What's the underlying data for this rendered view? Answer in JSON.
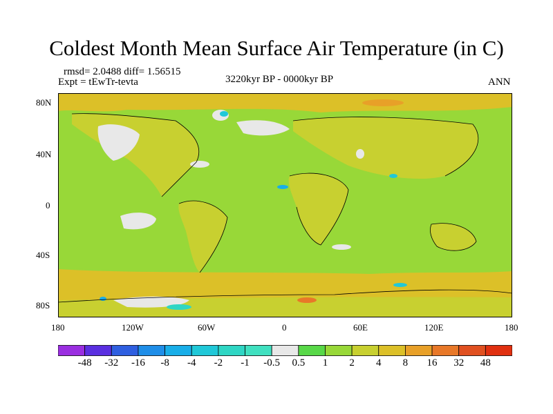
{
  "title": "Coldest Month Mean Surface Air Temperature (in C)",
  "left_line1": "rmsd= 2.0488 diff= 1.56515",
  "left_line2": "Expt = tEwTr-tevta",
  "center_line": "3220kyr BP - 0000kyr BP",
  "right_line": "ANN",
  "lat_ticks": [
    "80N",
    "40N",
    "0",
    "40S",
    "80S"
  ],
  "lon_ticks": [
    "180",
    "120W",
    "60W",
    "0",
    "60E",
    "120E",
    "180"
  ],
  "colorbar": {
    "labels": [
      "-48",
      "-32",
      "-16",
      "-8",
      "-4",
      "-2",
      "-1",
      "-0.5",
      "0.5",
      "1",
      "2",
      "4",
      "8",
      "16",
      "32",
      "48"
    ],
    "colors": [
      "#9a2ee0",
      "#5a2fe0",
      "#2f5fe0",
      "#1f8ee8",
      "#19aee8",
      "#20c8d8",
      "#2fd6c4",
      "#40e0c0",
      "#e8e8e8",
      "#58d848",
      "#98d838",
      "#c8d030",
      "#dcc028",
      "#e8a028",
      "#e87828",
      "#e05020",
      "#e03010"
    ]
  }
}
